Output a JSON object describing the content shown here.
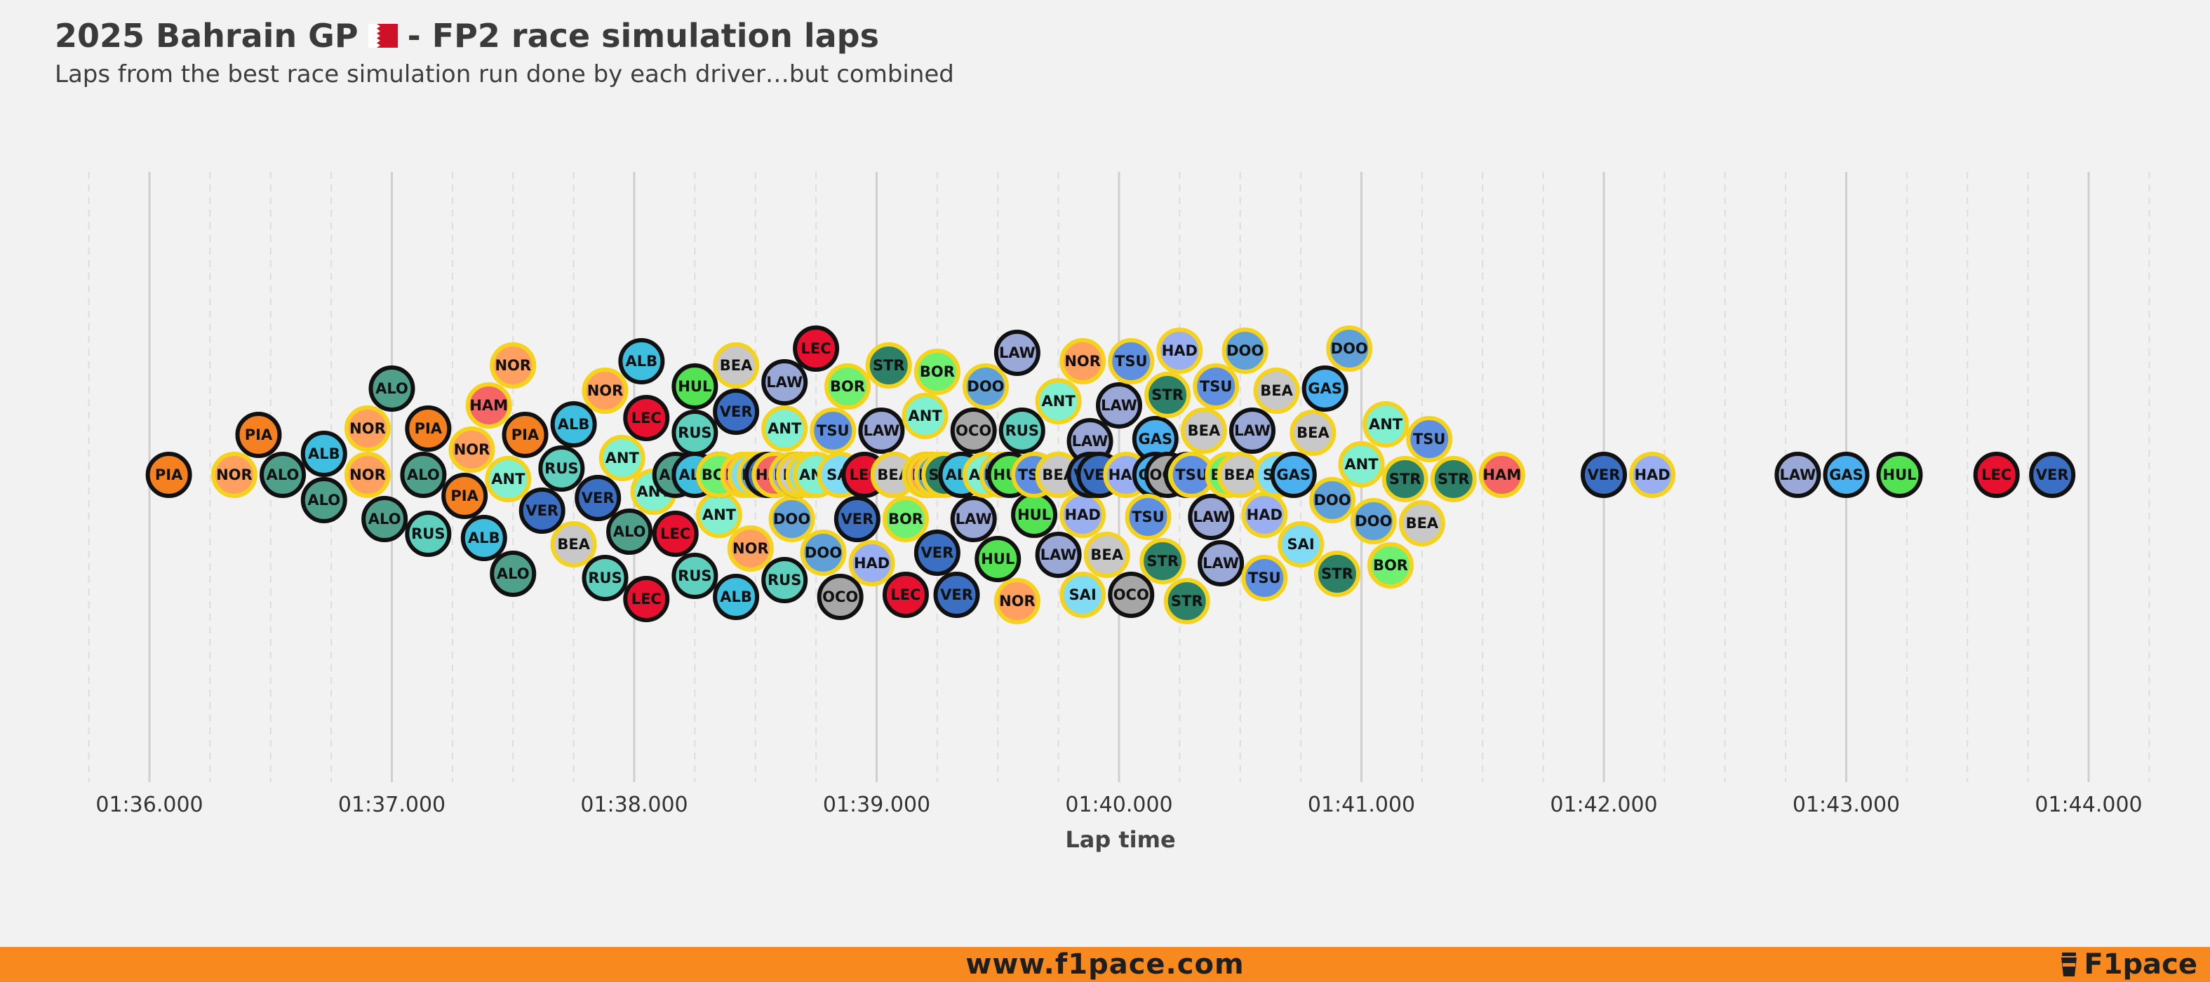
{
  "header": {
    "title_left": "2025 Bahrain GP",
    "title_right": "- FP2 race simulation laps",
    "flag_icon": "bahrain-flag-icon",
    "subtitle": "Laps from the best race simulation run done by each driver…but combined"
  },
  "footer": {
    "url": "www.f1pace.com",
    "brand": "F1pace",
    "brand_icon": "coffee-cup-icon",
    "color": "#f7891f"
  },
  "chart_data": {
    "type": "scatter",
    "subtype": "beeswarm",
    "title": "2025 Bahrain GP - FP2 race simulation laps",
    "subtitle": "Laps from the best race simulation run done by each driver…but combined",
    "xlabel": "Lap time",
    "x_unit": "seconds",
    "xlim": [
      95.7,
      104.25
    ],
    "x_ticks": [
      {
        "value": 96,
        "label": "01:36.000"
      },
      {
        "value": 97,
        "label": "01:37.000"
      },
      {
        "value": 98,
        "label": "01:38.000"
      },
      {
        "value": 99,
        "label": "01:39.000"
      },
      {
        "value": 100,
        "label": "01:40.000"
      },
      {
        "value": 101,
        "label": "01:41.000"
      },
      {
        "value": 102,
        "label": "01:42.000"
      },
      {
        "value": 103,
        "label": "01:43.000"
      },
      {
        "value": 104,
        "label": "01:44.000"
      }
    ],
    "grid": "vertical major and dashed minor",
    "team_colors": {
      "PIA": "#f58020",
      "NOR": "#ffa060",
      "ALO": "#4fa08b",
      "STR": "#2c8068",
      "ALB": "#3fbfe0",
      "SAI": "#80dcf5",
      "RUS": "#5fcfbe",
      "ANT": "#80f0d0",
      "VER": "#3a6fc4",
      "TSU": "#5f8fe0",
      "LEC": "#e8102f",
      "HAM": "#f56565",
      "OCO": "#a6a6a6",
      "BEA": "#c8c8c8",
      "HUL": "#52e252",
      "BOR": "#70f070",
      "GAS": "#4ab0f0",
      "DOO": "#5fa0d8",
      "LAW": "#9aa8d8",
      "HAD": "#9aaef2"
    },
    "outline_first_driver": "#111111",
    "outline_second_driver": "#f5d31c",
    "first_drivers": [
      "PIA",
      "ALO",
      "ALB",
      "RUS",
      "VER",
      "LEC",
      "OCO",
      "HUL",
      "GAS",
      "LAW"
    ],
    "laps": [
      {
        "driver": "PIA",
        "time": 96.08
      },
      {
        "driver": "NOR",
        "time": 96.35
      },
      {
        "driver": "PIA",
        "time": 96.45
      },
      {
        "driver": "ALO",
        "time": 96.55
      },
      {
        "driver": "ALB",
        "time": 96.72
      },
      {
        "driver": "ALO",
        "time": 96.72
      },
      {
        "driver": "NOR",
        "time": 96.9
      },
      {
        "driver": "NOR",
        "time": 96.9
      },
      {
        "driver": "ALO",
        "time": 96.97
      },
      {
        "driver": "ALO",
        "time": 97.0
      },
      {
        "driver": "ALO",
        "time": 97.13
      },
      {
        "driver": "PIA",
        "time": 97.15
      },
      {
        "driver": "RUS",
        "time": 97.15
      },
      {
        "driver": "PIA",
        "time": 97.3
      },
      {
        "driver": "NOR",
        "time": 97.33
      },
      {
        "driver": "ALB",
        "time": 97.38
      },
      {
        "driver": "HAM",
        "time": 97.4
      },
      {
        "driver": "ANT",
        "time": 97.48
      },
      {
        "driver": "ALO",
        "time": 97.5
      },
      {
        "driver": "NOR",
        "time": 97.5
      },
      {
        "driver": "PIA",
        "time": 97.55
      },
      {
        "driver": "VER",
        "time": 97.62
      },
      {
        "driver": "RUS",
        "time": 97.7
      },
      {
        "driver": "ALB",
        "time": 97.75
      },
      {
        "driver": "BEA",
        "time": 97.75
      },
      {
        "driver": "VER",
        "time": 97.85
      },
      {
        "driver": "NOR",
        "time": 97.88
      },
      {
        "driver": "RUS",
        "time": 97.88
      },
      {
        "driver": "ANT",
        "time": 97.95
      },
      {
        "driver": "ALO",
        "time": 97.98
      },
      {
        "driver": "ALB",
        "time": 98.03
      },
      {
        "driver": "LEC",
        "time": 98.05
      },
      {
        "driver": "LEC",
        "time": 98.05
      },
      {
        "driver": "ANT",
        "time": 98.08
      },
      {
        "driver": "LEC",
        "time": 98.17
      },
      {
        "driver": "ALO",
        "time": 98.17
      },
      {
        "driver": "RUS",
        "time": 98.25
      },
      {
        "driver": "HUL",
        "time": 98.25
      },
      {
        "driver": "RUS",
        "time": 98.25
      },
      {
        "driver": "ALB",
        "time": 98.25
      },
      {
        "driver": "ANT",
        "time": 98.35
      },
      {
        "driver": "ALB",
        "time": 98.35
      },
      {
        "driver": "GAS",
        "time": 98.35
      },
      {
        "driver": "BOR",
        "time": 98.35
      },
      {
        "driver": "VER",
        "time": 98.42
      },
      {
        "driver": "BEA",
        "time": 98.42
      },
      {
        "driver": "ALB",
        "time": 98.42
      },
      {
        "driver": "HAD",
        "time": 98.45
      },
      {
        "driver": "NOR",
        "time": 98.45
      },
      {
        "driver": "NOR",
        "time": 98.48
      },
      {
        "driver": "SAI",
        "time": 98.48
      },
      {
        "driver": "DOO",
        "time": 98.52
      },
      {
        "driver": "VER",
        "time": 98.55
      },
      {
        "driver": "BEA",
        "time": 98.55
      },
      {
        "driver": "VER",
        "time": 98.55
      },
      {
        "driver": "OCO",
        "time": 98.58
      },
      {
        "driver": "HAM",
        "time": 98.58
      },
      {
        "driver": "ANT",
        "time": 98.62
      },
      {
        "driver": "LAW",
        "time": 98.62
      },
      {
        "driver": "RUS",
        "time": 98.62
      },
      {
        "driver": "DOO",
        "time": 98.65
      },
      {
        "driver": "HAD",
        "time": 98.65
      },
      {
        "driver": "OCO",
        "time": 98.68
      },
      {
        "driver": "VER",
        "time": 98.68
      },
      {
        "driver": "GAS",
        "time": 98.68
      },
      {
        "driver": "BEA",
        "time": 98.68
      },
      {
        "driver": "HAD",
        "time": 98.72
      },
      {
        "driver": "SAI",
        "time": 98.72
      },
      {
        "driver": "LEC",
        "time": 98.75
      },
      {
        "driver": "HAM",
        "time": 98.75
      },
      {
        "driver": "ANT",
        "time": 98.75
      },
      {
        "driver": "DOO",
        "time": 98.78
      },
      {
        "driver": "TSU",
        "time": 98.82
      },
      {
        "driver": "OCO",
        "time": 98.85
      },
      {
        "driver": "SAI",
        "time": 98.85
      },
      {
        "driver": "BOR",
        "time": 98.88
      },
      {
        "driver": "VER",
        "time": 98.92
      },
      {
        "driver": "LEC",
        "time": 98.95
      },
      {
        "driver": "HAD",
        "time": 98.98
      },
      {
        "driver": "LAW",
        "time": 99.02
      },
      {
        "driver": "STR",
        "time": 99.05
      },
      {
        "driver": "LAW",
        "time": 99.07
      },
      {
        "driver": "SAI",
        "time": 99.07
      },
      {
        "driver": "BEA",
        "time": 99.07
      },
      {
        "driver": "BOR",
        "time": 99.12
      },
      {
        "driver": "LEC",
        "time": 99.12
      },
      {
        "driver": "ANT",
        "time": 99.2
      },
      {
        "driver": "HAD",
        "time": 99.2
      },
      {
        "driver": "GAS",
        "time": 99.22
      },
      {
        "driver": "NOR",
        "time": 99.22
      },
      {
        "driver": "VER",
        "time": 99.25
      },
      {
        "driver": "BOR",
        "time": 99.25
      },
      {
        "driver": "DOO",
        "time": 99.25
      },
      {
        "driver": "STR",
        "time": 99.28
      },
      {
        "driver": "HAM",
        "time": 99.35
      },
      {
        "driver": "VER",
        "time": 99.33
      },
      {
        "driver": "RUS",
        "time": 99.35
      },
      {
        "driver": "OCO",
        "time": 99.4
      },
      {
        "driver": "LAW",
        "time": 99.4
      },
      {
        "driver": "DOO",
        "time": 99.45
      },
      {
        "driver": "NOR",
        "time": 99.45
      },
      {
        "driver": "ALB",
        "time": 99.35
      },
      {
        "driver": "TSU",
        "time": 99.45
      },
      {
        "driver": "ANT",
        "time": 99.45
      },
      {
        "driver": "HUL",
        "time": 99.5
      },
      {
        "driver": "OCO",
        "time": 99.52
      },
      {
        "driver": "DOO",
        "time": 99.52
      },
      {
        "driver": "HUL",
        "time": 99.55
      },
      {
        "driver": "LAW",
        "time": 99.58
      },
      {
        "driver": "RUS",
        "time": 99.6
      },
      {
        "driver": "NOR",
        "time": 99.58
      },
      {
        "driver": "HUL",
        "time": 99.65
      },
      {
        "driver": "TSU",
        "time": 99.65
      },
      {
        "driver": "ALB",
        "time": 99.65
      },
      {
        "driver": "TSU",
        "time": 99.65
      },
      {
        "driver": "ANT",
        "time": 99.75
      },
      {
        "driver": "LAW",
        "time": 99.75
      },
      {
        "driver": "STR",
        "time": 99.75
      },
      {
        "driver": "BOR",
        "time": 99.75
      },
      {
        "driver": "STR",
        "time": 99.75
      },
      {
        "driver": "BEA",
        "time": 99.75
      },
      {
        "driver": "HAD",
        "time": 99.85
      },
      {
        "driver": "LAW",
        "time": 99.88
      },
      {
        "driver": "NOR",
        "time": 99.85
      },
      {
        "driver": "SAI",
        "time": 99.85
      },
      {
        "driver": "STR",
        "time": 99.9
      },
      {
        "driver": "HUL",
        "time": 99.9
      },
      {
        "driver": "VER",
        "time": 99.88
      },
      {
        "driver": "NOR",
        "time": 99.92
      },
      {
        "driver": "VER",
        "time": 99.92
      },
      {
        "driver": "BEA",
        "time": 99.95
      },
      {
        "driver": "LAW",
        "time": 100.0
      },
      {
        "driver": "HAD",
        "time": 100.03
      },
      {
        "driver": "TSU",
        "time": 100.05
      },
      {
        "driver": "OCO",
        "time": 100.05
      },
      {
        "driver": "GAS",
        "time": 100.15
      },
      {
        "driver": "STR",
        "time": 100.18
      },
      {
        "driver": "GAS",
        "time": 100.15
      },
      {
        "driver": "TSU",
        "time": 100.12
      },
      {
        "driver": "STR",
        "time": 100.2
      },
      {
        "driver": "OCO",
        "time": 100.2
      },
      {
        "driver": "SAI",
        "time": 100.3
      },
      {
        "driver": "BEA",
        "time": 100.35
      },
      {
        "driver": "TSU",
        "time": 100.4
      },
      {
        "driver": "HAD",
        "time": 100.25
      },
      {
        "driver": "STR",
        "time": 100.28
      },
      {
        "driver": "HUL",
        "time": 100.28
      },
      {
        "driver": "BOR",
        "time": 100.3
      },
      {
        "driver": "LAW",
        "time": 100.38
      },
      {
        "driver": "TSU",
        "time": 100.3
      },
      {
        "driver": "BOR",
        "time": 100.45
      },
      {
        "driver": "LAW",
        "time": 100.42
      },
      {
        "driver": "BEA",
        "time": 100.5
      },
      {
        "driver": "HAD",
        "time": 100.6
      },
      {
        "driver": "LAW",
        "time": 100.55
      },
      {
        "driver": "DOO",
        "time": 100.52
      },
      {
        "driver": "TSU",
        "time": 100.6
      },
      {
        "driver": "BEA",
        "time": 100.65
      },
      {
        "driver": "SAI",
        "time": 100.65
      },
      {
        "driver": "BEA",
        "time": 100.72
      },
      {
        "driver": "SAI",
        "time": 100.75
      },
      {
        "driver": "GAS",
        "time": 100.72
      },
      {
        "driver": "BEA",
        "time": 100.8
      },
      {
        "driver": "GAS",
        "time": 100.85
      },
      {
        "driver": "STR",
        "time": 100.9
      },
      {
        "driver": "DOO",
        "time": 100.88
      },
      {
        "driver": "DOO",
        "time": 100.95
      },
      {
        "driver": "ANT",
        "time": 101.0
      },
      {
        "driver": "DOO",
        "time": 101.05
      },
      {
        "driver": "ANT",
        "time": 101.1
      },
      {
        "driver": "BOR",
        "time": 101.12
      },
      {
        "driver": "STR",
        "time": 101.18
      },
      {
        "driver": "BEA",
        "time": 101.25
      },
      {
        "driver": "TSU",
        "time": 101.28
      },
      {
        "driver": "STR",
        "time": 101.38
      },
      {
        "driver": "HAM",
        "time": 101.58
      },
      {
        "driver": "VER",
        "time": 102.0
      },
      {
        "driver": "HAD",
        "time": 102.2
      },
      {
        "driver": "LAW",
        "time": 102.8
      },
      {
        "driver": "GAS",
        "time": 103.0
      },
      {
        "driver": "HUL",
        "time": 103.22
      },
      {
        "driver": "LEC",
        "time": 103.62
      },
      {
        "driver": "VER",
        "time": 103.85
      }
    ]
  }
}
